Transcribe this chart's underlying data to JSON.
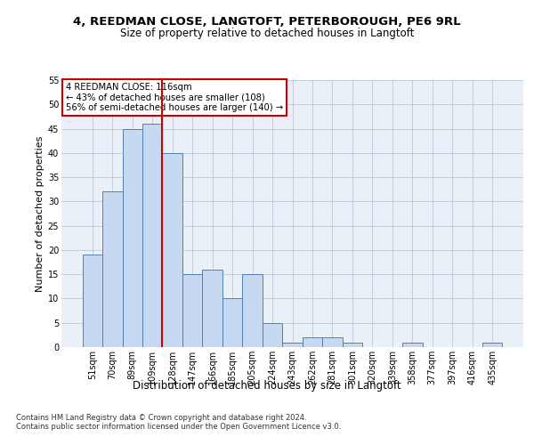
{
  "title_line1": "4, REEDMAN CLOSE, LANGTOFT, PETERBOROUGH, PE6 9RL",
  "title_line2": "Size of property relative to detached houses in Langtoft",
  "xlabel": "Distribution of detached houses by size in Langtoft",
  "ylabel": "Number of detached properties",
  "footnote": "Contains HM Land Registry data © Crown copyright and database right 2024.\nContains public sector information licensed under the Open Government Licence v3.0.",
  "categories": [
    "51sqm",
    "70sqm",
    "89sqm",
    "109sqm",
    "128sqm",
    "147sqm",
    "166sqm",
    "185sqm",
    "205sqm",
    "224sqm",
    "243sqm",
    "262sqm",
    "281sqm",
    "301sqm",
    "320sqm",
    "339sqm",
    "358sqm",
    "377sqm",
    "397sqm",
    "416sqm",
    "435sqm"
  ],
  "values": [
    19,
    32,
    45,
    46,
    40,
    15,
    16,
    10,
    15,
    5,
    1,
    2,
    2,
    1,
    0,
    0,
    1,
    0,
    0,
    0,
    1
  ],
  "bar_color": "#c6d9f0",
  "bar_edge_color": "#5580b0",
  "vline_x": 3.5,
  "vline_color": "#cc0000",
  "annotation_text": "4 REEDMAN CLOSE: 116sqm\n← 43% of detached houses are smaller (108)\n56% of semi-detached houses are larger (140) →",
  "annotation_box_color": "#cc0000",
  "ylim": [
    0,
    55
  ],
  "yticks": [
    0,
    5,
    10,
    15,
    20,
    25,
    30,
    35,
    40,
    45,
    50,
    55
  ],
  "grid_color": "#c0c8d8",
  "background_color": "#eaf0f8",
  "fig_background": "#ffffff",
  "title1_fontsize": 9.5,
  "title2_fontsize": 8.5,
  "ylabel_fontsize": 8,
  "xlabel_fontsize": 8.5,
  "tick_fontsize": 7,
  "footnote_fontsize": 6.0
}
